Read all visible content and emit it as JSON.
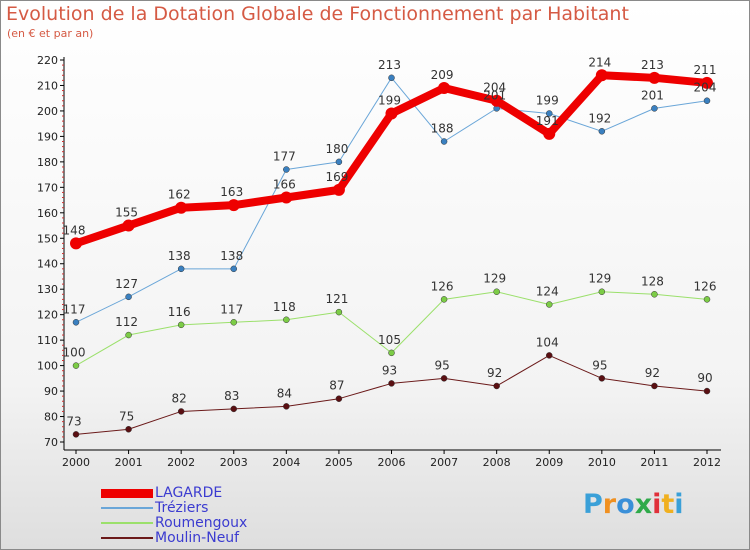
{
  "header": {
    "title": "Evolution de la Dotation Globale de Fonctionnement par Habitant",
    "subtitle": "(en € et par an)"
  },
  "logo": {
    "text": "Proxiti",
    "colors": [
      "#3aa0d8",
      "#f09020",
      "#3a8fd8",
      "#2faa4a",
      "#e0303a",
      "#f0b020",
      "#3aa0d8"
    ]
  },
  "chart_data": {
    "type": "line",
    "x": [
      "2000",
      "2001",
      "2002",
      "2003",
      "2004",
      "2005",
      "2006",
      "2007",
      "2008",
      "2009",
      "2010",
      "2011",
      "2012"
    ],
    "ylim": [
      70,
      220
    ],
    "yticks": [
      70,
      80,
      90,
      100,
      110,
      120,
      130,
      140,
      150,
      160,
      170,
      180,
      190,
      200,
      210,
      220
    ],
    "grid": false,
    "legend_position": "bottom-left",
    "series": [
      {
        "name": "Moulin-Neuf",
        "color": "#6b1a1a",
        "width": 1,
        "values": [
          73,
          75,
          82,
          83,
          84,
          87,
          93,
          95,
          92,
          104,
          95,
          92,
          90
        ]
      },
      {
        "name": "Roumengoux",
        "color": "#9be06b",
        "width": 1,
        "values": [
          100,
          112,
          116,
          117,
          118,
          121,
          105,
          126,
          129,
          124,
          129,
          128,
          126
        ]
      },
      {
        "name": "Tréziers",
        "color": "#6aa6d8",
        "width": 1,
        "values": [
          117,
          127,
          138,
          138,
          177,
          180,
          213,
          188,
          201,
          199,
          192,
          201,
          204
        ]
      },
      {
        "name": "LAGARDE",
        "color": "#ee0000",
        "width": 8,
        "values": [
          148,
          155,
          162,
          163,
          166,
          169,
          199,
          209,
          204,
          191,
          214,
          213,
          211
        ]
      }
    ]
  },
  "legend_order": [
    "LAGARDE",
    "Tréziers",
    "Roumengoux",
    "Moulin-Neuf"
  ]
}
